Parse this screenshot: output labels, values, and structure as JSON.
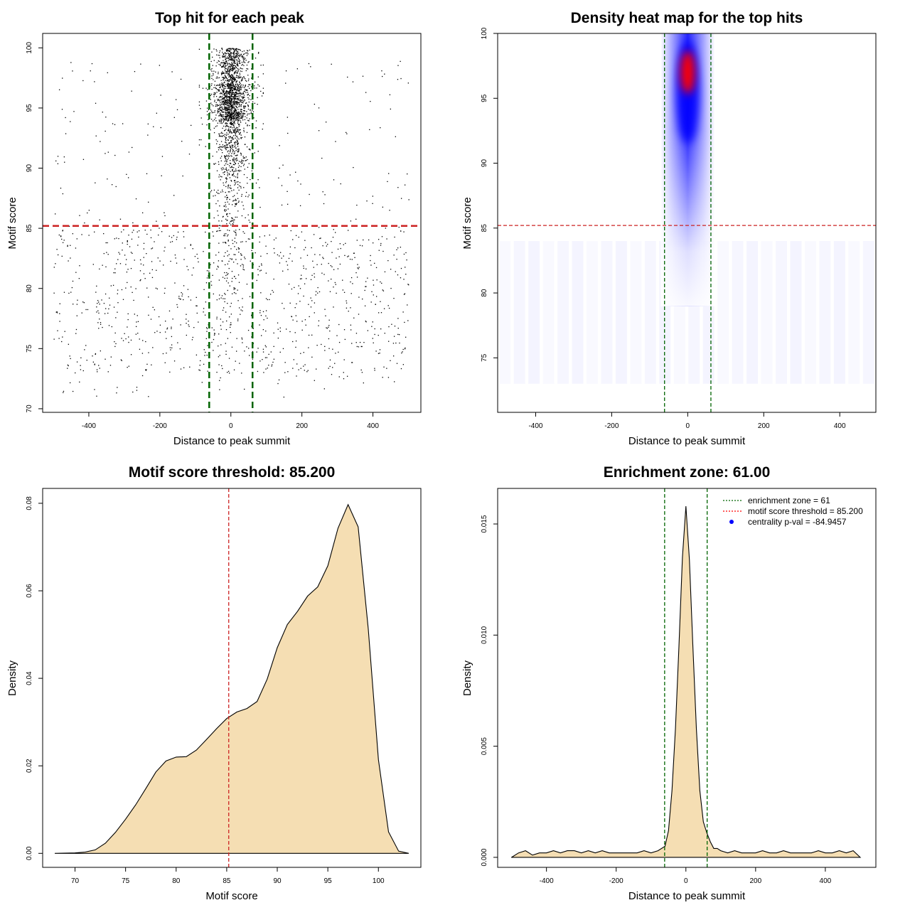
{
  "colors": {
    "green": "#006400",
    "red": "#ff0000",
    "red_dark": "#cc2222",
    "fill": "#f5deb3",
    "heat_low": "#ffffff",
    "heat_mid": "#0000ff",
    "heat_high": "#ff0000"
  },
  "chart_data": [
    {
      "id": "p1",
      "type": "scatter",
      "title": "Top hit for each peak",
      "xlabel": "Distance to peak summit",
      "ylabel": "Motif score",
      "xlim": [
        -530,
        535
      ],
      "ylim": [
        69.7,
        101.2
      ],
      "xticks": [
        -400,
        -200,
        0,
        200,
        400
      ],
      "yticks": [
        70,
        75,
        80,
        85,
        90,
        95,
        100
      ],
      "vlines": [
        -61,
        61
      ],
      "hline": 85.2,
      "point_summary": {
        "central_cluster": {
          "x_center": 0,
          "x_spread": 20,
          "y_range": [
            73,
            100
          ],
          "mode": 97
        },
        "background": {
          "x_range": [
            -500,
            500
          ],
          "y_range": [
            71,
            99
          ],
          "denser_below": 85
        }
      }
    },
    {
      "id": "p2",
      "type": "heatmap",
      "title": "Density heat map for the top hits",
      "xlabel": "Distance to peak summit",
      "ylabel": "Motif score",
      "xlim": [
        -500,
        495
      ],
      "ylim": [
        70.8,
        100
      ],
      "xticks": [
        -400,
        -200,
        0,
        200,
        400
      ],
      "yticks": [
        75,
        80,
        85,
        90,
        95,
        100
      ],
      "vlines": [
        -61,
        61
      ],
      "hline": 85.2,
      "hotspot": {
        "x": 0,
        "y": 97
      }
    },
    {
      "id": "p3",
      "type": "area",
      "title": "Motif score threshold: 85.200",
      "xlabel": "Motif score",
      "ylabel": "Density",
      "xlim": [
        66.8,
        104.2
      ],
      "ylim": [
        -0.0032,
        0.0834
      ],
      "xticks": [
        70,
        75,
        80,
        85,
        90,
        95,
        100
      ],
      "yticks": [
        0.0,
        0.02,
        0.04,
        0.06,
        0.08
      ],
      "ytick_labels": [
        "0.00",
        "0.02",
        "0.04",
        "0.06",
        "0.08"
      ],
      "vline": 85.2,
      "x": [
        68,
        70,
        71,
        72,
        73,
        74,
        75,
        76,
        77,
        78,
        79,
        80,
        81,
        82,
        83,
        84,
        85,
        86,
        87,
        88,
        89,
        90,
        91,
        92,
        93,
        94,
        95,
        96,
        97,
        98,
        99,
        100,
        101,
        102,
        103
      ],
      "y": [
        0.0,
        0.0001,
        0.0003,
        0.0008,
        0.0023,
        0.0048,
        0.0078,
        0.0111,
        0.0148,
        0.0186,
        0.0211,
        0.022,
        0.0221,
        0.0236,
        0.026,
        0.0285,
        0.0308,
        0.0323,
        0.0331,
        0.0347,
        0.0398,
        0.047,
        0.0523,
        0.0553,
        0.0588,
        0.0609,
        0.0657,
        0.0743,
        0.0797,
        0.0746,
        0.0513,
        0.0214,
        0.0049,
        0.0005,
        0.0
      ]
    },
    {
      "id": "p4",
      "type": "area",
      "title": "Enrichment zone: 61.00",
      "xlabel": "Distance to peak summit",
      "ylabel": "Density",
      "xlim": [
        -540,
        545
      ],
      "ylim": [
        -0.00045,
        0.0166
      ],
      "xticks": [
        -400,
        -200,
        0,
        200,
        400
      ],
      "yticks": [
        0.0,
        0.005,
        0.01,
        0.015
      ],
      "ytick_labels": [
        "0.000",
        "0.005",
        "0.010",
        "0.015"
      ],
      "vlines": [
        -61,
        61
      ],
      "x": [
        -500,
        -480,
        -460,
        -440,
        -420,
        -400,
        -380,
        -360,
        -340,
        -320,
        -300,
        -280,
        -260,
        -240,
        -220,
        -200,
        -180,
        -160,
        -140,
        -120,
        -100,
        -80,
        -60,
        -50,
        -40,
        -30,
        -20,
        -10,
        0,
        10,
        20,
        30,
        40,
        50,
        60,
        70,
        80,
        90,
        100,
        120,
        140,
        160,
        180,
        200,
        220,
        240,
        260,
        280,
        300,
        320,
        340,
        360,
        380,
        400,
        420,
        440,
        460,
        480,
        500
      ],
      "y": [
        0.0,
        0.0002,
        0.0003,
        0.0001,
        0.0002,
        0.0002,
        0.0003,
        0.0002,
        0.0003,
        0.0003,
        0.0002,
        0.0003,
        0.0002,
        0.0003,
        0.0002,
        0.0002,
        0.0002,
        0.0002,
        0.0002,
        0.0003,
        0.0002,
        0.0003,
        0.0005,
        0.0012,
        0.003,
        0.0058,
        0.0095,
        0.0135,
        0.0158,
        0.0134,
        0.0095,
        0.0058,
        0.003,
        0.0016,
        0.0011,
        0.0007,
        0.0004,
        0.0004,
        0.0003,
        0.0002,
        0.0003,
        0.0002,
        0.0002,
        0.0002,
        0.0003,
        0.0002,
        0.0002,
        0.0003,
        0.0002,
        0.0002,
        0.0002,
        0.0002,
        0.0003,
        0.0002,
        0.0002,
        0.0003,
        0.0002,
        0.0003,
        0.0
      ],
      "legend": {
        "position": "top-right",
        "entries": [
          {
            "label": "enrichment zone = 61",
            "style": "dotted",
            "color": "#006400"
          },
          {
            "label": "motif score threshold = 85.200",
            "style": "dotted",
            "color": "#ff0000"
          },
          {
            "label": "centrality p-val = -84.9457",
            "style": "point",
            "color": "#0000ff"
          }
        ]
      }
    }
  ]
}
